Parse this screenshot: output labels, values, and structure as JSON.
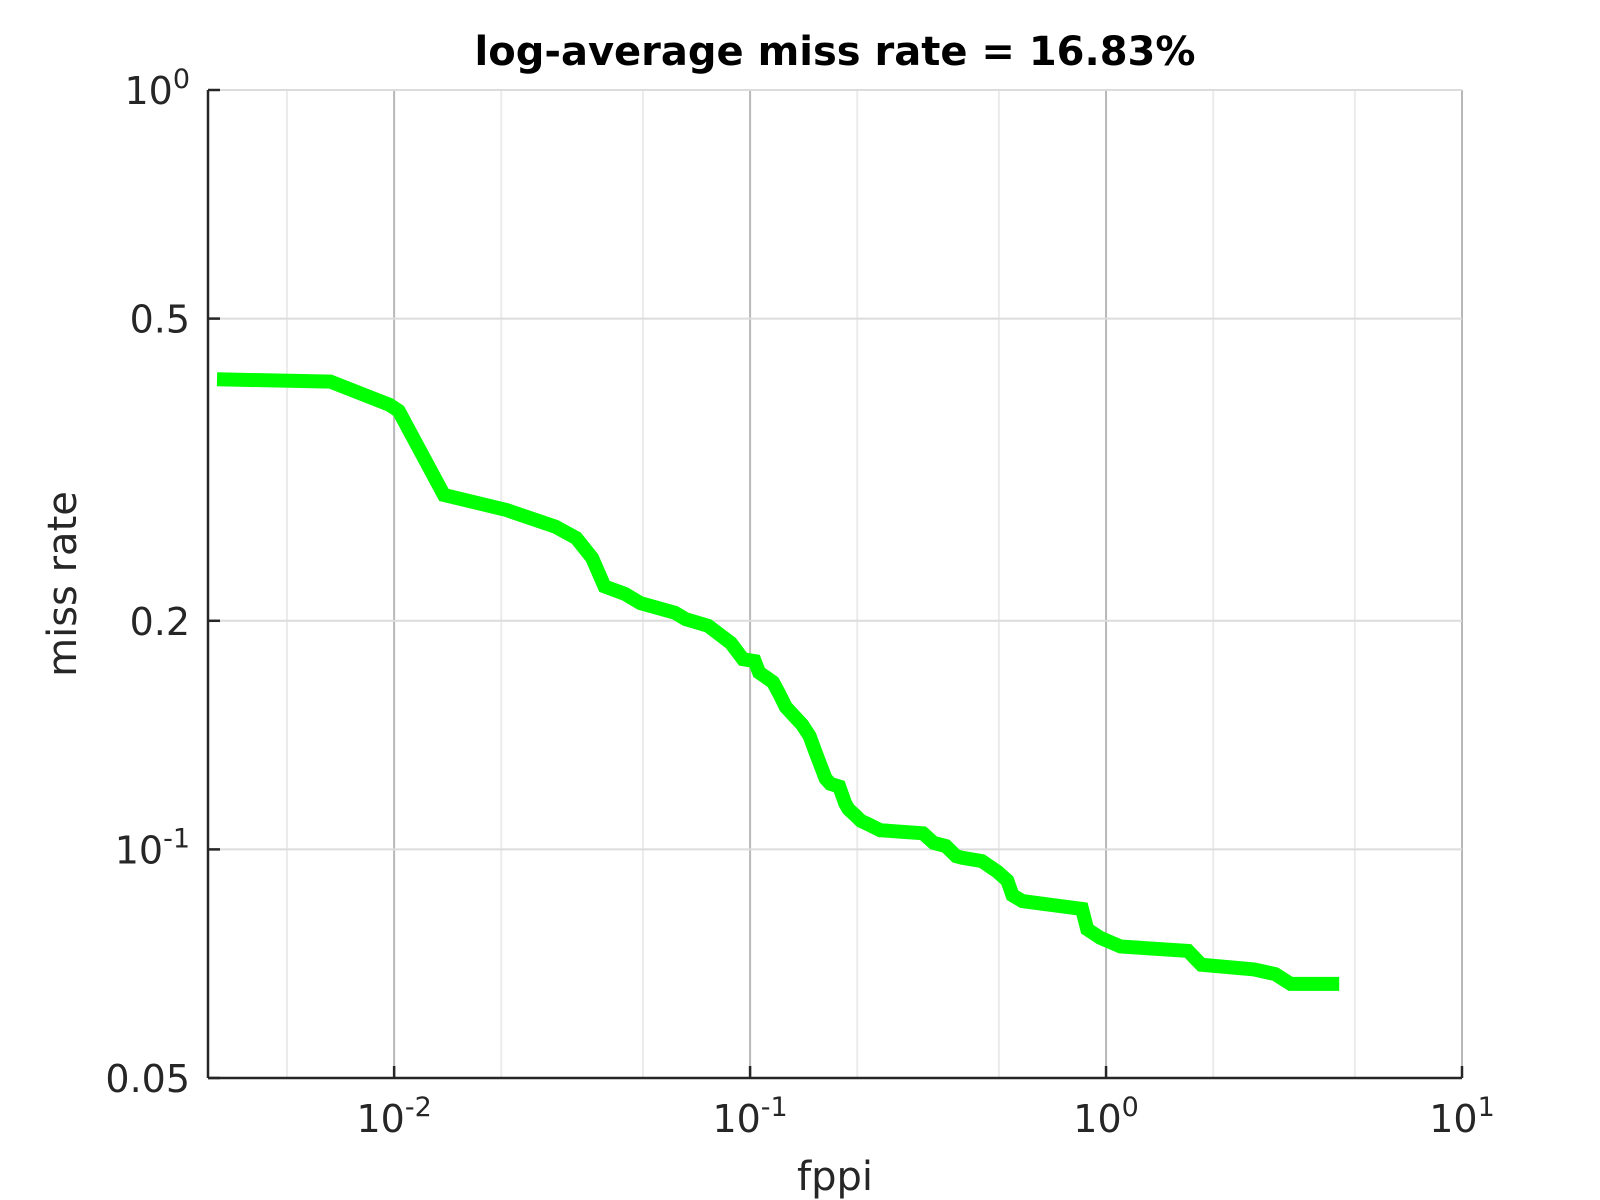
{
  "chart_data": {
    "type": "line",
    "title": "log-average miss rate = 16.83%",
    "xlabel": "fppi",
    "ylabel": "miss rate",
    "xscale": "log",
    "yscale": "log",
    "xlim": [
      0.003,
      10
    ],
    "ylim": [
      0.05,
      1
    ],
    "grid": true,
    "x_ticks": [
      {
        "value": 0.01,
        "base": "10",
        "exp": "-2"
      },
      {
        "value": 0.1,
        "base": "10",
        "exp": "-1"
      },
      {
        "value": 1,
        "base": "10",
        "exp": "0"
      },
      {
        "value": 10,
        "base": "10",
        "exp": "1"
      }
    ],
    "y_ticks": [
      {
        "value": 0.05,
        "base": "0.05",
        "exp": ""
      },
      {
        "value": 0.1,
        "base": "10",
        "exp": "-1"
      },
      {
        "value": 0.2,
        "base": "0.2",
        "exp": ""
      },
      {
        "value": 0.5,
        "base": "0.5",
        "exp": ""
      },
      {
        "value": 1,
        "base": "10",
        "exp": "0"
      }
    ],
    "series": [
      {
        "color": "#00ff00",
        "x": [
          0.00318,
          0.00662,
          0.0097,
          0.0103,
          0.0138,
          0.0206,
          0.0284,
          0.0325,
          0.036,
          0.039,
          0.0445,
          0.0492,
          0.0615,
          0.066,
          0.0762,
          0.0883,
          0.0955,
          0.103,
          0.106,
          0.112,
          0.116,
          0.121,
          0.126,
          0.131,
          0.14,
          0.147,
          0.153,
          0.163,
          0.168,
          0.178,
          0.185,
          0.189,
          0.197,
          0.205,
          0.214,
          0.232,
          0.306,
          0.328,
          0.355,
          0.379,
          0.393,
          0.448,
          0.495,
          0.528,
          0.546,
          0.582,
          0.856,
          0.885,
          0.962,
          1.099,
          1.699,
          1.852,
          2.605,
          2.99,
          3.3,
          4.52
        ],
        "y": [
          0.416,
          0.413,
          0.385,
          0.378,
          0.293,
          0.28,
          0.266,
          0.257,
          0.242,
          0.222,
          0.217,
          0.211,
          0.205,
          0.201,
          0.197,
          0.187,
          0.178,
          0.177,
          0.171,
          0.168,
          0.166,
          0.16,
          0.154,
          0.151,
          0.146,
          0.141,
          0.134,
          0.124,
          0.122,
          0.121,
          0.115,
          0.113,
          0.111,
          0.109,
          0.108,
          0.106,
          0.105,
          0.102,
          0.101,
          0.098,
          0.0975,
          0.0965,
          0.0935,
          0.091,
          0.087,
          0.0855,
          0.0835,
          0.0785,
          0.0765,
          0.0745,
          0.0735,
          0.0705,
          0.0695,
          0.0685,
          0.0665,
          0.0665
        ]
      }
    ]
  }
}
